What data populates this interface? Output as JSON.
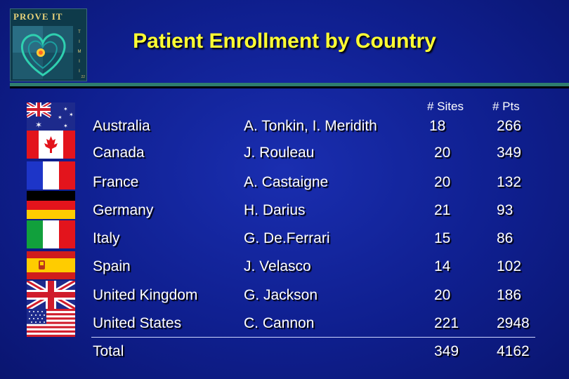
{
  "logo": {
    "title": "PROVE IT",
    "trial_letters": [
      "T",
      "I",
      "M",
      "I",
      "I"
    ],
    "subtitle": "22"
  },
  "title": "Patient Enrollment by Country",
  "headers": {
    "sites": "# Sites",
    "pts": "# Pts"
  },
  "rows": [
    {
      "country": "Australia",
      "investigator": "A. Tonkin, I. Meridith",
      "sites": "18",
      "pts": "266",
      "flag": "australia-flag"
    },
    {
      "country": "Canada",
      "investigator": "J. Rouleau",
      "sites": "20",
      "pts": "349",
      "flag": "canada-flag"
    },
    {
      "country": "France",
      "investigator": "A. Castaigne",
      "sites": "20",
      "pts": "132",
      "flag": "france-flag"
    },
    {
      "country": "Germany",
      "investigator": "H. Darius",
      "sites": "21",
      "pts": "93",
      "flag": "germany-flag"
    },
    {
      "country": "Italy",
      "investigator": "G. De.Ferrari",
      "sites": "15",
      "pts": "86",
      "flag": "italy-flag"
    },
    {
      "country": "Spain",
      "investigator": "J. Velasco",
      "sites": "14",
      "pts": "102",
      "flag": "spain-flag"
    },
    {
      "country": "United Kingdom",
      "investigator": "G. Jackson",
      "sites": "20",
      "pts": "186",
      "flag": "uk-flag"
    },
    {
      "country": "United States",
      "investigator": "C. Cannon",
      "sites": "221",
      "pts": "2948",
      "flag": "us-flag"
    }
  ],
  "total": {
    "label": "Total",
    "sites": "349",
    "pts": "4162"
  }
}
